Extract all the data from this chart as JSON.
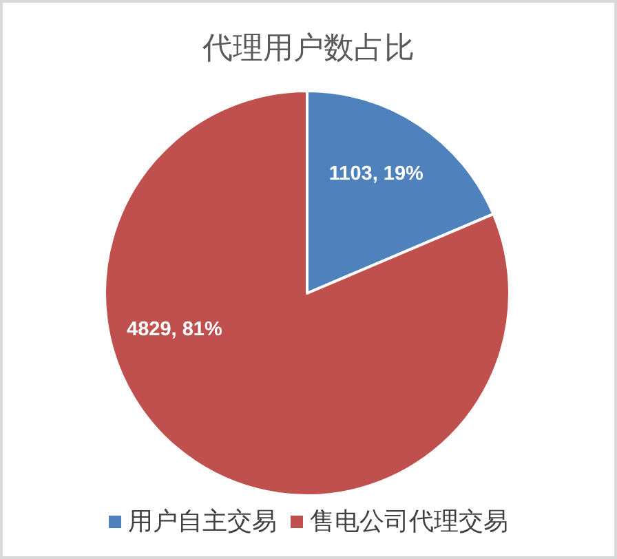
{
  "chart_data": {
    "type": "pie",
    "title": "代理用户数占比",
    "categories": [
      "用户自主交易",
      "售电公司代理交易"
    ],
    "values": [
      1103,
      4829
    ],
    "colors": [
      "#4f81bd",
      "#c0504d"
    ],
    "value_labels": [
      "1103, 19%",
      "4829, 81%"
    ],
    "legend": "bottom"
  }
}
